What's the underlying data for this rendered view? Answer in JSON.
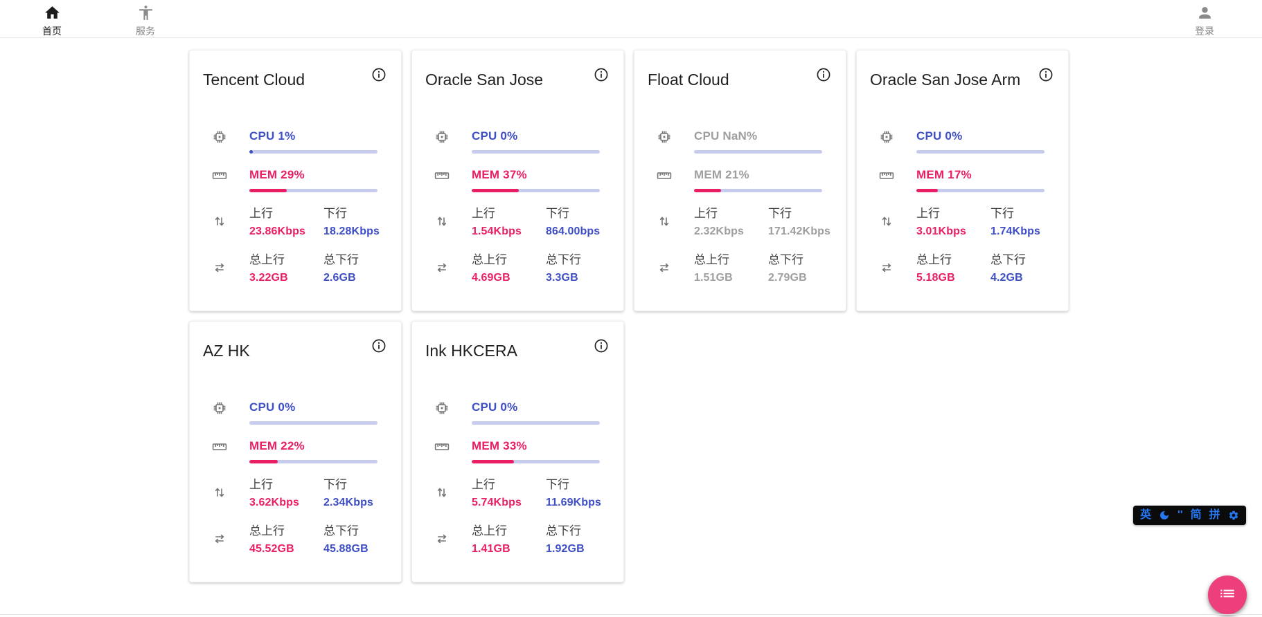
{
  "nav": {
    "home": {
      "label": "首页"
    },
    "services": {
      "label": "服务"
    },
    "login": {
      "label": "登录"
    }
  },
  "labels": {
    "up": "上行",
    "down": "下行",
    "total_up": "总上行",
    "total_down": "总下行"
  },
  "servers": [
    {
      "name": "Tencent Cloud",
      "cpu_label": "CPU 1%",
      "cpu_pct": 1,
      "mem_label": "MEM 29%",
      "mem_pct": 29,
      "up": "23.86Kbps",
      "down": "18.28Kbps",
      "total_up": "3.22GB",
      "total_down": "2.6GB",
      "offline": false
    },
    {
      "name": "Oracle San Jose",
      "cpu_label": "CPU 0%",
      "cpu_pct": 0,
      "mem_label": "MEM 37%",
      "mem_pct": 37,
      "up": "1.54Kbps",
      "down": "864.00bps",
      "total_up": "4.69GB",
      "total_down": "3.3GB",
      "offline": false
    },
    {
      "name": "Float Cloud",
      "cpu_label": "CPU NaN%",
      "cpu_pct": 0,
      "mem_label": "MEM 21%",
      "mem_pct": 21,
      "up": "2.32Kbps",
      "down": "171.42Kbps",
      "total_up": "1.51GB",
      "total_down": "2.79GB",
      "offline": true
    },
    {
      "name": "Oracle San Jose Arm",
      "cpu_label": "CPU 0%",
      "cpu_pct": 0,
      "mem_label": "MEM 17%",
      "mem_pct": 17,
      "up": "3.01Kbps",
      "down": "1.74Kbps",
      "total_up": "5.18GB",
      "total_down": "4.2GB",
      "offline": false
    },
    {
      "name": "AZ HK",
      "cpu_label": "CPU 0%",
      "cpu_pct": 0,
      "mem_label": "MEM 22%",
      "mem_pct": 22,
      "up": "3.62Kbps",
      "down": "2.34Kbps",
      "total_up": "45.52GB",
      "total_down": "45.88GB",
      "offline": false
    },
    {
      "name": "Ink HKCERA",
      "cpu_label": "CPU 0%",
      "cpu_pct": 0,
      "mem_label": "MEM 33%",
      "mem_pct": 33,
      "up": "5.74Kbps",
      "down": "11.69Kbps",
      "total_up": "1.41GB",
      "total_down": "1.92GB",
      "offline": false
    }
  ],
  "ime_bar": {
    "lang": "英",
    "punct": "''",
    "simplified": "简",
    "pinyin": "拼"
  },
  "colors": {
    "accent_pink": "#e91e63",
    "accent_indigo": "#3e4ec4",
    "bar_track": "#c7ccee",
    "offline_gray": "#9e9e9e",
    "icon_gray": "#757575",
    "fab_pink": "#ee3f7d",
    "ime_blue": "#2577f2",
    "ime_bg": "#0b0b0b"
  }
}
